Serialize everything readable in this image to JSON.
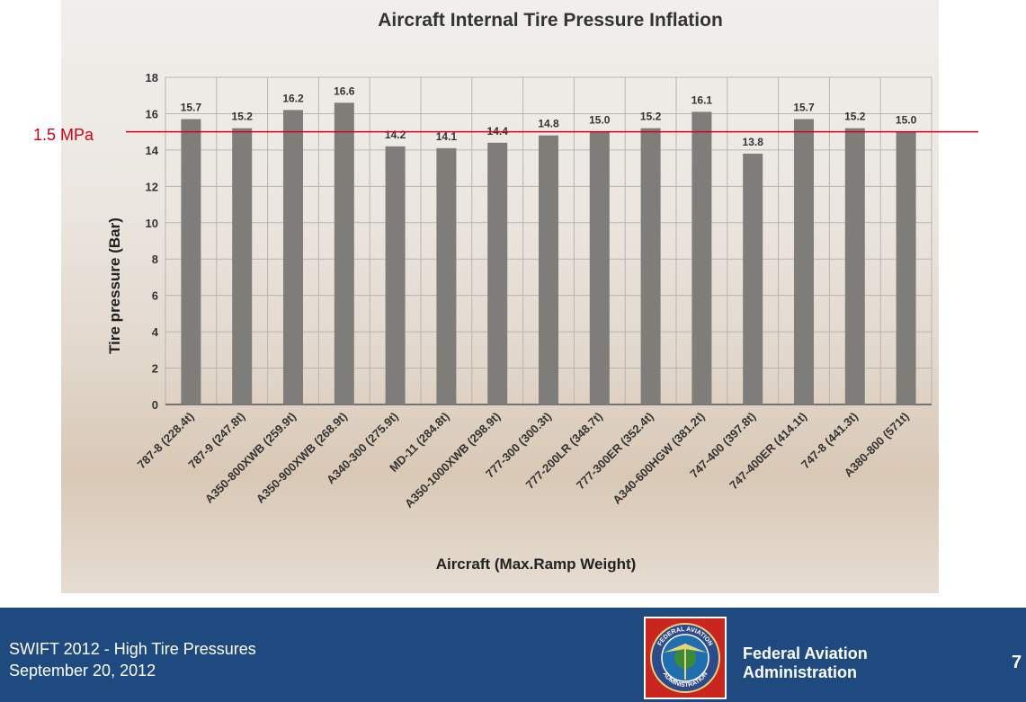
{
  "colors": {
    "bar": "#7e7d79",
    "reference_line": "#d0021b",
    "footer_bg": "#1f4a80",
    "footer_text": "#ffffff"
  },
  "chart_data": {
    "type": "bar",
    "title": "Aircraft Internal Tire Pressure Inflation",
    "xlabel": "Aircraft (Max.Ramp Weight)",
    "ylabel": "Tire pressure (Bar)",
    "ylim": [
      0,
      18
    ],
    "yticks": [
      0,
      2,
      4,
      6,
      8,
      10,
      12,
      14,
      16,
      18
    ],
    "grid": true,
    "categories": [
      "787-8 (228.4t)",
      "787-9 (247.8t)",
      "A350-800XWB (259.9t)",
      "A350-900XWB (268.9t)",
      "A340-300 (275.9t)",
      "MD-11 (284.8t)",
      "A350-1000XWB (298.9t)",
      "777-300 (300.3t)",
      "777-200LR (348.7t)",
      "777-300ER (352.4t)",
      "A340-600HGW (381.2t)",
      "747-400 (397.8t)",
      "747-400ER (414.1t)",
      "747-8 (441.3t)",
      "A380-800 (571t)"
    ],
    "values": [
      15.7,
      15.2,
      16.2,
      16.6,
      14.2,
      14.1,
      14.4,
      14.8,
      15.0,
      15.2,
      16.1,
      13.8,
      15.7,
      15.2,
      15.0
    ],
    "value_labels": [
      "15.7",
      "15.2",
      "16.2",
      "16.6",
      "14.2",
      "14.1",
      "14.4",
      "14.8",
      "15.0",
      "15.2",
      "16.1",
      "13.8",
      "15.7",
      "15.2",
      "15.0"
    ],
    "reference_line": {
      "value": 15.0,
      "label": "1.5 MPa"
    }
  },
  "footer": {
    "line1": "SWIFT 2012 - High Tire Pressures",
    "line2": "September 20, 2012",
    "agency_line1": "Federal Aviation",
    "agency_line2": "Administration",
    "page_number": "7",
    "seal_text_top": "FEDERAL AVIATION",
    "seal_text_bottom": "ADMINISTRATION"
  }
}
